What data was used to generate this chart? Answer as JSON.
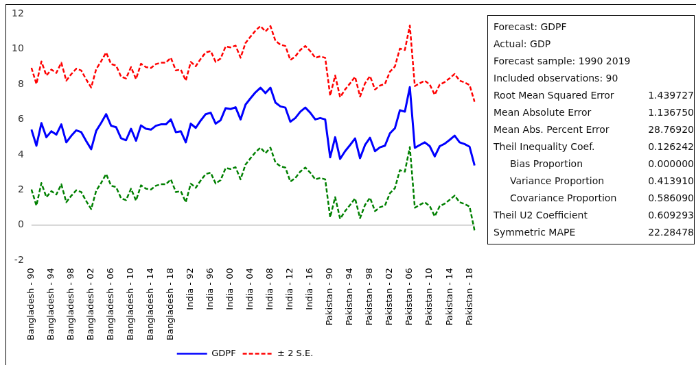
{
  "chart_data": {
    "type": "line",
    "categories": [
      "Bangladesh - 90",
      null,
      null,
      null,
      "Bangladesh - 94",
      null,
      null,
      null,
      "Bangladesh - 98",
      null,
      null,
      null,
      "Bangladesh - 02",
      null,
      null,
      null,
      "Bangladesh - 06",
      null,
      null,
      null,
      "Bangladesh - 10",
      null,
      null,
      null,
      "Bangladesh - 14",
      null,
      null,
      null,
      "Bangladesh - 18",
      null,
      null,
      null,
      "India - 92",
      null,
      null,
      null,
      "India - 96",
      null,
      null,
      null,
      "India - 00",
      null,
      null,
      null,
      "India - 04",
      null,
      null,
      null,
      "India - 08",
      null,
      null,
      null,
      "India - 12",
      null,
      null,
      null,
      "India - 16",
      null,
      null,
      null,
      "Pakistan - 90",
      null,
      null,
      null,
      "Pakistan - 94",
      null,
      null,
      null,
      "Pakistan - 98",
      null,
      null,
      null,
      "Pakistan - 02",
      null,
      null,
      null,
      "Pakistan - 06",
      null,
      null,
      null,
      "Pakistan - 10",
      null,
      null,
      null,
      "Pakistan - 14",
      null,
      null,
      null,
      "Pakistan - 18",
      null
    ],
    "series": [
      {
        "name": "GDPF",
        "color": "#0000ff",
        "line_style": "solid",
        "values": [
          5.43,
          4.51,
          5.79,
          4.99,
          5.33,
          5.14,
          5.72,
          4.7,
          5.07,
          5.38,
          5.28,
          4.77,
          4.31,
          5.35,
          5.8,
          6.3,
          5.64,
          5.56,
          4.93,
          4.82,
          5.47,
          4.79,
          5.66,
          5.47,
          5.42,
          5.64,
          5.72,
          5.72,
          6.0,
          5.28,
          5.33,
          4.7,
          5.76,
          5.52,
          5.94,
          6.3,
          6.38,
          5.76,
          5.96,
          6.64,
          6.59,
          6.69,
          6.0,
          6.84,
          7.2,
          7.54,
          7.8,
          7.49,
          7.8,
          6.96,
          6.74,
          6.67,
          5.87,
          6.08,
          6.44,
          6.67,
          6.38,
          6.0,
          6.08,
          6.0,
          3.85,
          4.99,
          3.76,
          4.2,
          4.55,
          4.92,
          3.8,
          4.55,
          4.96,
          4.2,
          4.42,
          4.51,
          5.21,
          5.5,
          6.52,
          6.44,
          7.83,
          4.39,
          4.55,
          4.7,
          4.48,
          3.9,
          4.48,
          4.62,
          4.84,
          5.08,
          4.7,
          4.6,
          4.45,
          3.39
        ]
      },
      {
        "name": "± 2 S.E.",
        "color": "#ff0000",
        "line_style": "dashed",
        "values": [
          8.93,
          8.01,
          9.29,
          8.49,
          8.83,
          8.64,
          9.22,
          8.2,
          8.57,
          8.88,
          8.78,
          8.27,
          7.81,
          8.85,
          9.3,
          9.8,
          9.14,
          9.06,
          8.43,
          8.32,
          8.97,
          8.29,
          9.16,
          8.97,
          8.92,
          9.14,
          9.22,
          9.22,
          9.5,
          8.78,
          8.83,
          8.2,
          9.26,
          9.02,
          9.44,
          9.8,
          9.88,
          9.26,
          9.46,
          10.14,
          10.09,
          10.19,
          9.5,
          10.34,
          10.7,
          11.04,
          11.3,
          10.99,
          11.3,
          10.46,
          10.24,
          10.17,
          9.37,
          9.58,
          9.94,
          10.17,
          9.88,
          9.5,
          9.58,
          9.5,
          7.35,
          8.49,
          7.26,
          7.7,
          8.05,
          8.42,
          7.3,
          8.05,
          8.46,
          7.7,
          7.92,
          8.01,
          8.71,
          9.0,
          10.02,
          9.94,
          11.33,
          7.89,
          8.05,
          8.2,
          7.98,
          7.4,
          7.98,
          8.12,
          8.34,
          8.58,
          8.2,
          8.1,
          7.95,
          7.0
        ]
      },
      {
        "color": "#008000",
        "line_style": "dashed",
        "values": [
          2.03,
          1.11,
          2.39,
          1.59,
          1.93,
          1.74,
          2.32,
          1.3,
          1.67,
          1.98,
          1.88,
          1.37,
          0.91,
          1.95,
          2.4,
          2.9,
          2.24,
          2.16,
          1.53,
          1.42,
          2.07,
          1.39,
          2.26,
          2.07,
          2.02,
          2.24,
          2.32,
          2.32,
          2.6,
          1.88,
          1.93,
          1.3,
          2.36,
          2.12,
          2.54,
          2.9,
          2.98,
          2.36,
          2.56,
          3.24,
          3.19,
          3.29,
          2.6,
          3.44,
          3.8,
          4.14,
          4.4,
          4.09,
          4.4,
          3.56,
          3.34,
          3.27,
          2.47,
          2.68,
          3.04,
          3.27,
          2.98,
          2.6,
          2.68,
          2.6,
          0.45,
          1.59,
          0.36,
          0.8,
          1.15,
          1.52,
          0.4,
          1.15,
          1.56,
          0.8,
          1.02,
          1.11,
          1.81,
          2.1,
          3.12,
          3.04,
          4.43,
          0.99,
          1.15,
          1.3,
          1.08,
          0.5,
          1.08,
          1.22,
          1.44,
          1.68,
          1.3,
          1.2,
          1.05,
          -0.3
        ]
      }
    ],
    "ylim": [
      -2,
      12
    ],
    "yticks": [
      -2,
      0,
      2,
      4,
      6,
      8,
      10,
      12
    ],
    "ref_lines": [
      {
        "axis": "y",
        "value": 0,
        "color": "#c0c0c0"
      }
    ],
    "grid": false,
    "legend": "bottom",
    "marker": "none",
    "annotations": [
      "Forecast: GDPF",
      "Actual: GDP",
      "Forecast sample: 1990 2019",
      "Included observations: 90",
      "Root Mean Squared Error  1.439727",
      "Mean Absolute Error  1.136750",
      "Mean Abs. Percent Error  28.76920",
      "Theil Inequality Coef.  0.126242",
      "   Bias Proportion  0.000000",
      "   Variance Proportion  0.413910",
      "   Covariance Proportion  0.586090",
      "Theil U2 Coefficient  0.609293",
      "Symmetric MAPE  22.28478"
    ]
  }
}
